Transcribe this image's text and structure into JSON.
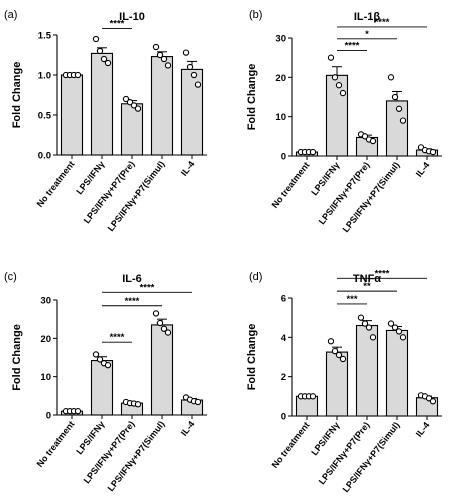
{
  "chart_data": [
    {
      "panel": "(a)",
      "type": "bar",
      "title": "IL-10",
      "ylabel": "Fold Change",
      "ylim": [
        0,
        1.5
      ],
      "yticks": [
        "0.0",
        "0.5",
        "1.0",
        "1.5"
      ],
      "categories": [
        "No treatment",
        "LPS/IFNγ",
        "LPS/IFNγ+P7(Pre)",
        "LPS/IFNγ+P7(Simul)",
        "IL-4"
      ],
      "values": [
        1.0,
        1.27,
        0.64,
        1.23,
        1.07
      ],
      "errors": [
        0.0,
        0.07,
        0.04,
        0.06,
        0.1
      ],
      "points": [
        [
          1.0,
          1.0,
          1.0,
          1.0
        ],
        [
          1.45,
          1.3,
          1.2,
          1.15
        ],
        [
          0.7,
          0.66,
          0.62,
          0.58
        ],
        [
          1.35,
          1.25,
          1.2,
          1.12
        ],
        [
          1.28,
          1.1,
          1.0,
          0.88
        ]
      ],
      "significance": [
        {
          "from": 1,
          "to": 2,
          "label": "****",
          "y": 1.58
        }
      ]
    },
    {
      "panel": "(b)",
      "type": "bar",
      "title": "IL-1β",
      "ylabel": "Fold Change",
      "ylim": [
        0,
        30
      ],
      "yticks": [
        "0",
        "10",
        "20",
        "30"
      ],
      "categories": [
        "No treatment",
        "LPS/IFNγ",
        "LPS/IFNγ+P7(Pre)",
        "LPS/IFNγ+P7(Simul)",
        "IL-4"
      ],
      "values": [
        1.0,
        20.5,
        4.7,
        14.0,
        1.5
      ],
      "errors": [
        0.0,
        2.2,
        0.6,
        2.4,
        0.3
      ],
      "points": [
        [
          1.0,
          1.0,
          1.0,
          1.0
        ],
        [
          25,
          20,
          18,
          16
        ],
        [
          5.5,
          5,
          4.2,
          3.8
        ],
        [
          20,
          15,
          12,
          9
        ],
        [
          2.2,
          1.5,
          1.2,
          1.0
        ]
      ],
      "significance": [
        {
          "from": 1,
          "to": 2,
          "label": "****",
          "y": 26.8
        },
        {
          "from": 1,
          "to": 3,
          "label": "*",
          "y": 29.8
        },
        {
          "from": 1,
          "to": 4,
          "label": "****",
          "y": 32.8
        }
      ]
    },
    {
      "panel": "(c)",
      "type": "bar",
      "title": "IL-6",
      "ylabel": "Fold Change",
      "ylim": [
        0,
        30
      ],
      "yticks": [
        "0",
        "10",
        "20",
        "30"
      ],
      "categories": [
        "No treatment",
        "LPS/IFNγ",
        "LPS/IFNγ+P7(Pre)",
        "LPS/IFNγ+P7(Simul)",
        "IL-4"
      ],
      "values": [
        1.0,
        14.2,
        3.1,
        23.5,
        3.9
      ],
      "errors": [
        0.0,
        1.0,
        0.3,
        1.5,
        0.4
      ],
      "points": [
        [
          1.0,
          1.0,
          1.0,
          1.0
        ],
        [
          15.8,
          14.5,
          13.5,
          13.0
        ],
        [
          3.4,
          3.1,
          3.0,
          2.8
        ],
        [
          26.5,
          24,
          22.5,
          21.5
        ],
        [
          4.6,
          4.0,
          3.6,
          3.4
        ]
      ],
      "significance": [
        {
          "from": 1,
          "to": 2,
          "label": "****",
          "y": 19.0
        },
        {
          "from": 1,
          "to": 3,
          "label": "****",
          "y": 28.5
        },
        {
          "from": 1,
          "to": 4,
          "label": "****",
          "y": 32.0
        }
      ]
    },
    {
      "panel": "(d)",
      "type": "bar",
      "title": "TNFα",
      "ylabel": "Fold Change",
      "ylim": [
        0,
        6
      ],
      "yticks": [
        "0",
        "2",
        "4",
        "6"
      ],
      "categories": [
        "No treatment",
        "LPS/IFNγ",
        "LPS/IFNγ+P7(Pre)",
        "LPS/IFNγ+P7(Simul)",
        "IL-4"
      ],
      "values": [
        1.0,
        3.25,
        4.6,
        4.35,
        0.93
      ],
      "errors": [
        0.0,
        0.25,
        0.25,
        0.2,
        0.08
      ],
      "points": [
        [
          1.0,
          1.0,
          1.0,
          1.0
        ],
        [
          3.8,
          3.3,
          3.1,
          2.9
        ],
        [
          5.0,
          4.7,
          4.5,
          4.0
        ],
        [
          4.7,
          4.5,
          4.3,
          4.0
        ],
        [
          1.05,
          1.0,
          0.9,
          0.75
        ]
      ],
      "significance": [
        {
          "from": 1,
          "to": 2,
          "label": "***",
          "y": 5.7
        },
        {
          "from": 1,
          "to": 3,
          "label": "**",
          "y": 6.35
        },
        {
          "from": 1,
          "to": 4,
          "label": "****",
          "y": 7.0
        }
      ]
    }
  ]
}
